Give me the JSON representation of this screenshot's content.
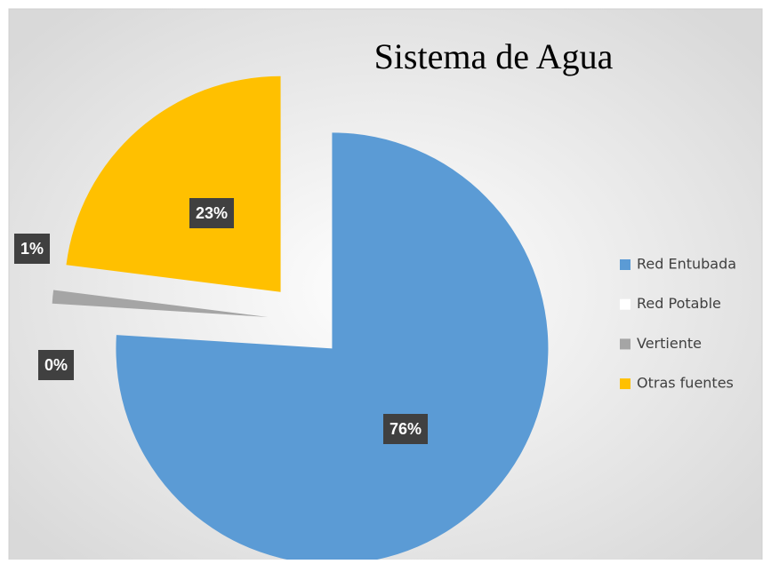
{
  "chart_data": {
    "type": "pie",
    "title": "Sistema de Agua",
    "categories": [
      "Red Entubada",
      "Red Potable",
      "Vertiente",
      "Otras fuentes"
    ],
    "values": [
      76,
      0,
      1,
      23
    ],
    "value_labels": [
      "76%",
      "0%",
      "1%",
      "23%"
    ],
    "colors": [
      "#5b9bd5",
      "#ffffff",
      "#a5a5a5",
      "#ffc000"
    ],
    "legend": "right"
  }
}
